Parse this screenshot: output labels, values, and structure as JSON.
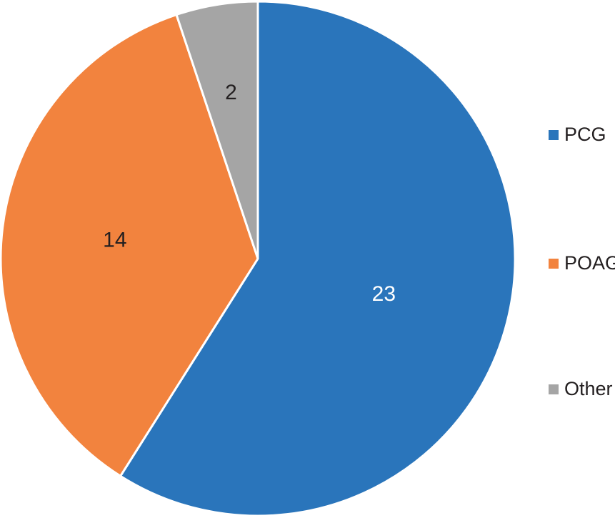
{
  "chart_data": {
    "type": "pie",
    "categories": [
      "PCG",
      "POAG",
      "Other"
    ],
    "values": [
      23,
      14,
      2
    ],
    "colors": [
      "#2a75bb",
      "#f2833e",
      "#a5a5a5"
    ],
    "data_labels": [
      "23",
      "14",
      "2"
    ],
    "label_colors": [
      "#ffffff",
      "#231f20",
      "#231f20"
    ],
    "legend": [
      {
        "label": "PCG",
        "color": "#2a75bb"
      },
      {
        "label": "POAG",
        "color": "#f2833e"
      },
      {
        "label": "Other",
        "color": "#a5a5a5"
      }
    ],
    "legend_position": "right",
    "start_angle": "top, clockwise"
  }
}
